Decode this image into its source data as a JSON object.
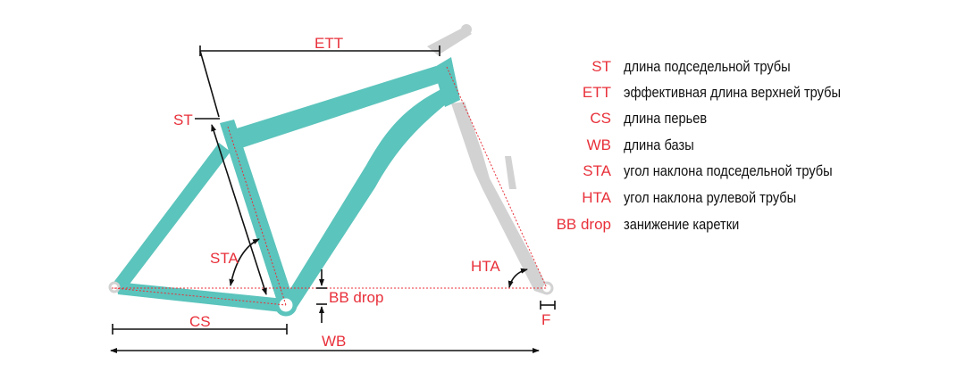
{
  "colors": {
    "frame": "#5bc4bc",
    "fork": "#d2d2d2",
    "label": "#e8303a",
    "line": "#111111"
  },
  "diagram_labels": {
    "ett": "ETT",
    "st": "ST",
    "sta": "STA",
    "hta": "HTA",
    "bb_drop": "BB drop",
    "cs": "CS",
    "wb": "WB",
    "f": "F"
  },
  "legend": [
    {
      "abbr": "ST",
      "text": "длина подседельной трубы"
    },
    {
      "abbr": "ETT",
      "text": "эффективная длина верхней трубы"
    },
    {
      "abbr": "CS",
      "text": "длина перьев"
    },
    {
      "abbr": "WB",
      "text": "длина базы"
    },
    {
      "abbr": "STA",
      "text": "угол наклона подседельной трубы"
    },
    {
      "abbr": "HTA",
      "text": "угол наклона рулевой трубы"
    },
    {
      "abbr": "BB drop",
      "text": "занижение каретки"
    }
  ]
}
